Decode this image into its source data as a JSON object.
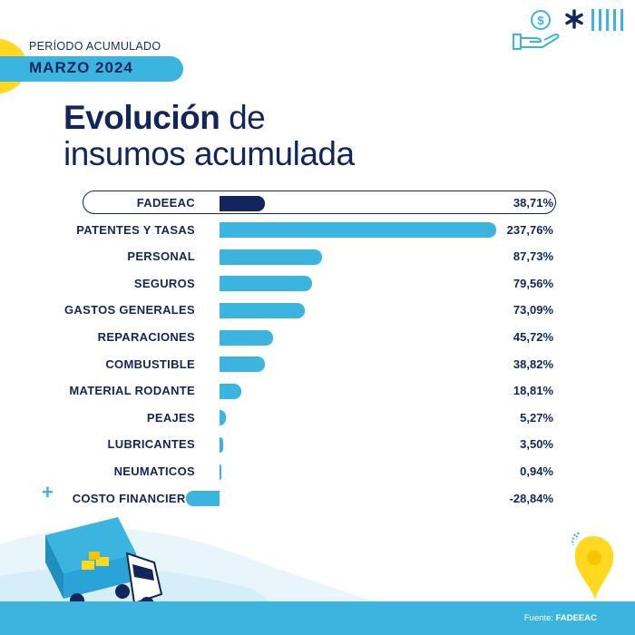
{
  "header": {
    "period_label": "PERÍODO ACUMULADO",
    "period_value": "MARZO 2024"
  },
  "title": {
    "bold": "Evolución",
    "rest_line1": " de",
    "line2": "insumos acumulada"
  },
  "footer": {
    "source_prefix": "Fuente: ",
    "source_name": "FADEEAC"
  },
  "colors": {
    "navy": "#12265c",
    "accent_blue": "#3bb4e0",
    "highlight_bar": "#12265c",
    "yellow": "#ffd81f"
  },
  "icons": [
    "dollar-coin-hand-icon",
    "asterisk-icon",
    "stripes-icon",
    "truck-illustration",
    "map-pin-icon",
    "plus-icon"
  ],
  "chart_data": {
    "type": "bar",
    "orientation": "horizontal",
    "highlight": "FADEEAC",
    "categories": [
      "FADEEAC",
      "PATENTES Y TASAS",
      "PERSONAL",
      "SEGUROS",
      "GASTOS GENERALES",
      "REPARACIONES",
      "COMBUSTIBLE",
      "MATERIAL RODANTE",
      "PEAJES",
      "LUBRICANTES",
      "NEUMATICOS",
      "COSTO FINANCIERO"
    ],
    "values": [
      38.71,
      237.76,
      87.73,
      79.56,
      73.09,
      45.72,
      38.82,
      18.81,
      5.27,
      3.5,
      0.94,
      -28.84
    ],
    "value_labels": [
      "38,71%",
      "237,76%",
      "87,73%",
      "79,56%",
      "73,09%",
      "45,72%",
      "38,82%",
      "18,81%",
      "5,27%",
      "3,50%",
      "0,94%",
      "-28,84%"
    ],
    "title": "Evolución de insumos acumulada",
    "xlabel": "",
    "ylabel": "",
    "grid": false
  }
}
